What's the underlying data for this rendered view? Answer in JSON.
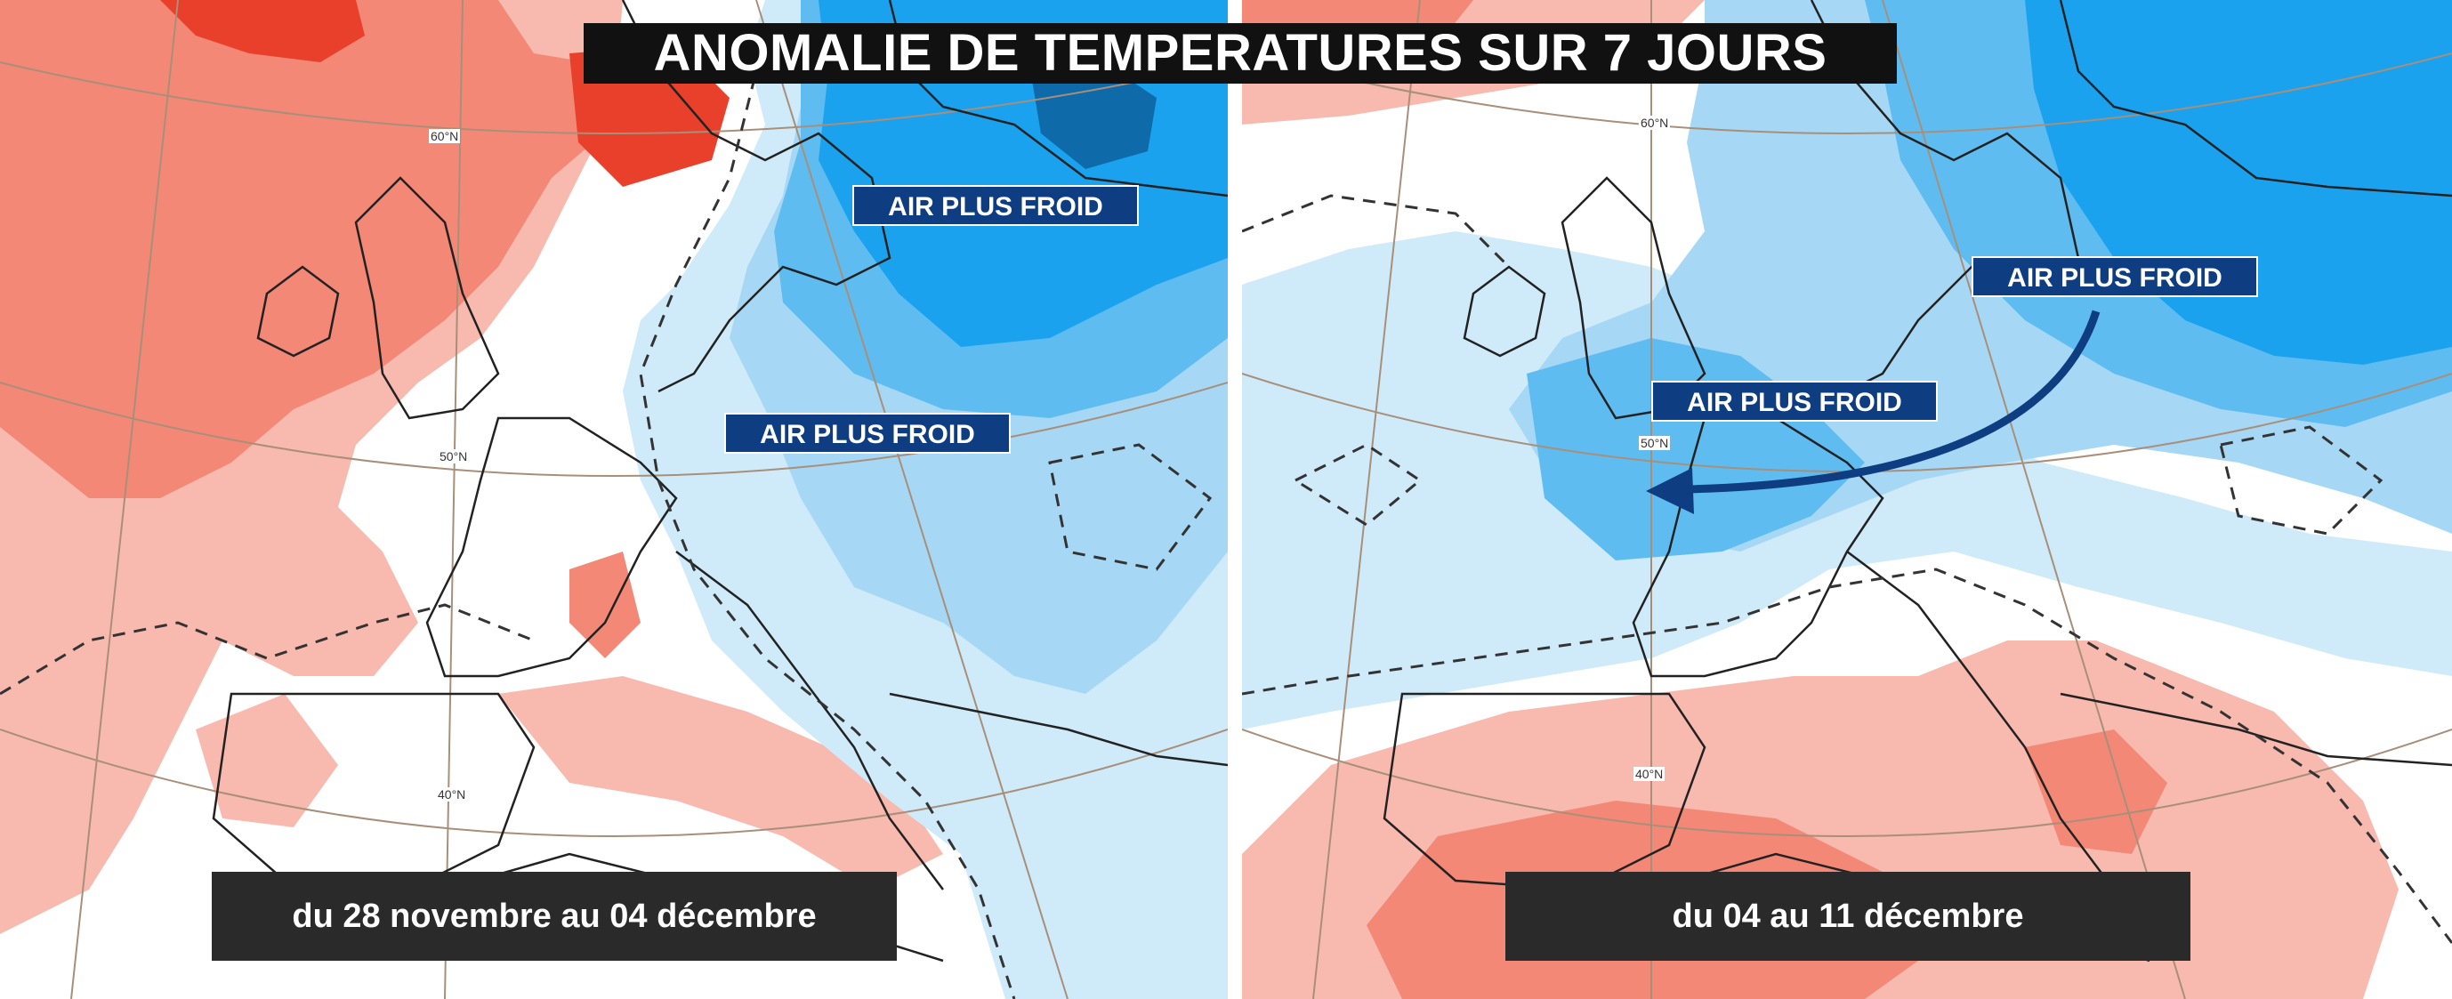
{
  "title": "ANOMALIE DE TEMPERATURES SUR 7 JOURS",
  "left_map": {
    "period": "du 28 novembre au 04 décembre",
    "labels": [
      "AIR PLUS FROID",
      "AIR PLUS FROID"
    ],
    "lat_labels": [
      "60°N",
      "50°N",
      "40°N"
    ]
  },
  "right_map": {
    "period": "du 04 au 11 décembre",
    "labels": [
      "AIR PLUS FROID",
      "AIR PLUS FROID"
    ],
    "lat_labels": [
      "60°N",
      "50°N",
      "40°N"
    ]
  },
  "colors": {
    "warm_light": "#f8b9ae",
    "warm_mid": "#f38876",
    "warm_strong": "#e8402a",
    "cold_very_light": "#cfeaf9",
    "cold_light": "#a6d8f5",
    "cold_mid": "#5fbcf0",
    "cold_strong": "#1aa2ee",
    "cold_dark": "#0e6aa8",
    "label_bg": "#0e3d82",
    "title_bg": "#111111"
  }
}
